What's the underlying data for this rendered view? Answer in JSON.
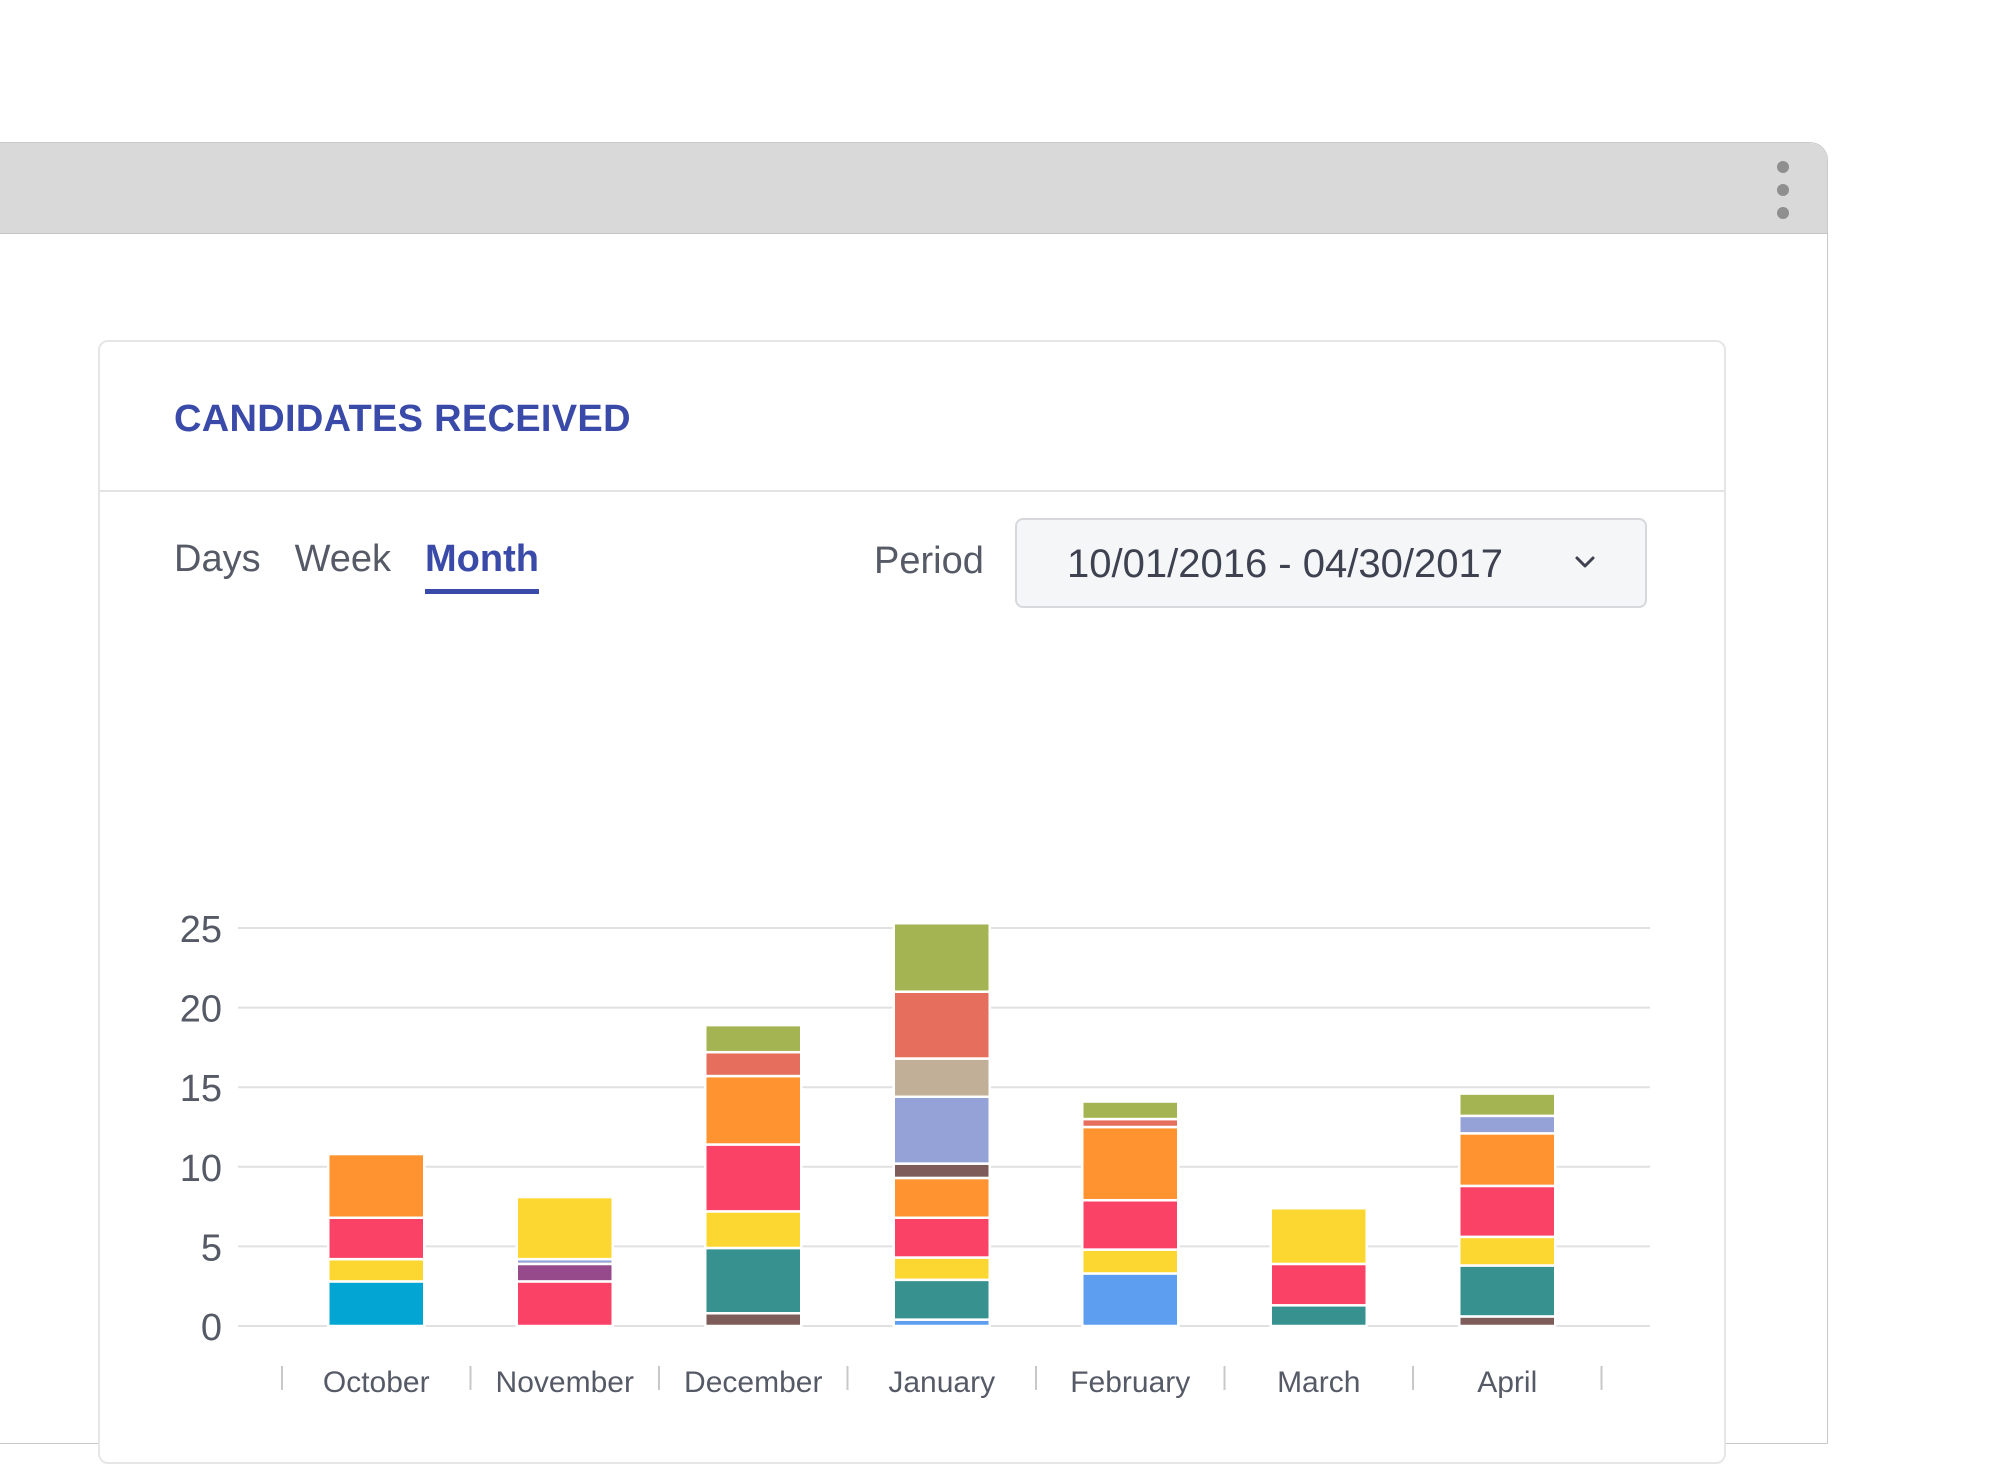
{
  "window": {
    "menu_icon": "more-vertical-icon"
  },
  "card": {
    "title": "CANDIDATES RECEIVED",
    "tabs": [
      {
        "label": "Days",
        "active": false
      },
      {
        "label": "Week",
        "active": false
      },
      {
        "label": "Month",
        "active": true
      }
    ],
    "period_label": "Period",
    "period_value": "10/01/2016 - 04/30/2017",
    "period_icon": "chevron-down-icon"
  },
  "colors": {
    "title": "#3a4aa8",
    "grid": "#e1e1e1",
    "axis_text": "#555a66"
  },
  "chart_data": {
    "type": "bar",
    "stacked": true,
    "categories": [
      "October",
      "November",
      "December",
      "January",
      "February",
      "March",
      "April"
    ],
    "ylim": [
      0,
      25
    ],
    "yticks": [
      0,
      5,
      10,
      15,
      20,
      25
    ],
    "grid": true,
    "legend": "none",
    "series": [
      {
        "color": "#03a6d2",
        "values": [
          2.8,
          0,
          0,
          0,
          0,
          0,
          0
        ]
      },
      {
        "color": "#5d9ef0",
        "values": [
          0,
          0,
          0,
          0.4,
          3.3,
          0,
          0
        ]
      },
      {
        "color": "#7e5c59",
        "values": [
          0,
          0,
          0.8,
          0,
          0,
          0,
          0.6
        ]
      },
      {
        "color": "#36918f",
        "values": [
          0,
          0,
          4.1,
          2.5,
          0,
          1.3,
          3.2
        ]
      },
      {
        "color": "#fdd731",
        "values": [
          1.4,
          0,
          2.3,
          1.4,
          1.5,
          0,
          1.8
        ]
      },
      {
        "color": "#fa4266",
        "values": [
          2.6,
          2.8,
          4.2,
          2.5,
          3.1,
          2.6,
          3.2
        ]
      },
      {
        "color": "#964a8c",
        "values": [
          0,
          1.1,
          0,
          0,
          0,
          0,
          0
        ]
      },
      {
        "color": "#93a1d7",
        "values": [
          0,
          0.3,
          0,
          0,
          0,
          0,
          0
        ]
      },
      {
        "color": "#fdd731",
        "values": [
          0,
          3.9,
          0,
          0,
          0,
          3.5,
          0
        ]
      },
      {
        "color": "#fe932f",
        "values": [
          4.0,
          0,
          4.3,
          2.5,
          4.6,
          0,
          3.3
        ]
      },
      {
        "color": "#7e5c59",
        "values": [
          0,
          0,
          0,
          0.9,
          0,
          0,
          0
        ]
      },
      {
        "color": "#95a2d8",
        "values": [
          0,
          0,
          0,
          4.2,
          0,
          0,
          1.1
        ]
      },
      {
        "color": "#c1af97",
        "values": [
          0,
          0,
          0,
          2.4,
          0,
          0,
          0
        ]
      },
      {
        "color": "#e56e5c",
        "values": [
          0,
          0,
          1.5,
          4.2,
          0.5,
          0,
          0
        ]
      },
      {
        "color": "#a4b452",
        "values": [
          0,
          0,
          1.7,
          4.3,
          1.1,
          0,
          1.4
        ]
      }
    ]
  }
}
